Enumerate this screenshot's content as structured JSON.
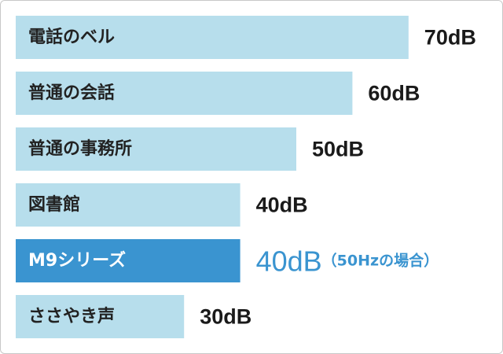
{
  "chart_data": {
    "type": "bar",
    "orientation": "horizontal",
    "categories": [
      "電話のベル",
      "普通の会話",
      "普通の事務所",
      "図書館",
      "M9シリーズ",
      "ささやき声"
    ],
    "values": [
      70,
      60,
      50,
      40,
      40,
      30
    ],
    "value_labels": [
      "70dB",
      "60dB",
      "50dB",
      "40dB",
      "40dB",
      "30dB"
    ],
    "highlight": {
      "category": "M9シリーズ",
      "note": "（50Hzの場合）"
    },
    "unit": "dB",
    "xlim": [
      0,
      100
    ],
    "grid": false,
    "legend": "none",
    "title": "",
    "xlabel": "",
    "ylabel": ""
  },
  "colors": {
    "bar": "#b7deec",
    "bar_highlight": "#3a94d0",
    "label_text": "#222222",
    "label_text_highlight": "#ffffff",
    "value_text": "#1a1a1a",
    "value_text_highlight": "#3a94d0",
    "frame_border": "#c8c8c8"
  }
}
